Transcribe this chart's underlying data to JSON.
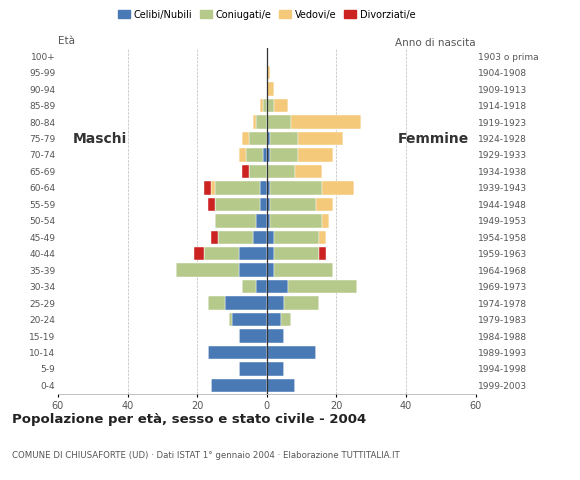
{
  "age_groups": [
    "0-4",
    "5-9",
    "10-14",
    "15-19",
    "20-24",
    "25-29",
    "30-34",
    "35-39",
    "40-44",
    "45-49",
    "50-54",
    "55-59",
    "60-64",
    "65-69",
    "70-74",
    "75-79",
    "80-84",
    "85-89",
    "90-94",
    "95-99",
    "100+"
  ],
  "birth_years": [
    "1999-2003",
    "1994-1998",
    "1989-1993",
    "1984-1988",
    "1979-1983",
    "1974-1978",
    "1969-1973",
    "1964-1968",
    "1959-1963",
    "1954-1958",
    "1949-1953",
    "1944-1948",
    "1939-1943",
    "1934-1938",
    "1929-1933",
    "1924-1928",
    "1919-1923",
    "1914-1918",
    "1909-1913",
    "1904-1908",
    "1903 o prima"
  ],
  "male": {
    "celibe": [
      16,
      8,
      17,
      8,
      10,
      12,
      3,
      8,
      8,
      4,
      3,
      2,
      2,
      0,
      1,
      0,
      0,
      0,
      0,
      0,
      0
    ],
    "coniugato": [
      0,
      0,
      0,
      0,
      1,
      5,
      4,
      18,
      10,
      10,
      12,
      13,
      13,
      5,
      5,
      5,
      3,
      1,
      0,
      0,
      0
    ],
    "vedovo": [
      0,
      0,
      0,
      0,
      0,
      0,
      0,
      0,
      0,
      0,
      0,
      0,
      1,
      0,
      2,
      2,
      1,
      1,
      0,
      0,
      0
    ],
    "divorziato": [
      0,
      0,
      0,
      0,
      0,
      0,
      0,
      0,
      3,
      2,
      0,
      2,
      2,
      2,
      0,
      0,
      0,
      0,
      0,
      0,
      0
    ]
  },
  "female": {
    "nubile": [
      8,
      5,
      14,
      5,
      4,
      5,
      6,
      2,
      2,
      2,
      1,
      1,
      1,
      0,
      1,
      1,
      0,
      0,
      0,
      0,
      0
    ],
    "coniugata": [
      0,
      0,
      0,
      0,
      3,
      10,
      20,
      17,
      13,
      13,
      15,
      13,
      15,
      8,
      8,
      8,
      7,
      2,
      0,
      0,
      0
    ],
    "vedova": [
      0,
      0,
      0,
      0,
      0,
      0,
      0,
      0,
      0,
      2,
      2,
      5,
      9,
      8,
      10,
      13,
      20,
      4,
      2,
      1,
      0
    ],
    "divorziata": [
      0,
      0,
      0,
      0,
      0,
      0,
      0,
      0,
      2,
      0,
      0,
      0,
      0,
      0,
      0,
      0,
      0,
      0,
      0,
      0,
      0
    ]
  },
  "colors": {
    "celibe": "#4a7ab5",
    "coniugato": "#b5c98a",
    "vedovo": "#f5c97a",
    "divorziato": "#cc2222"
  },
  "xlim": 60,
  "title": "Popolazione per età, sesso e stato civile - 2004",
  "subtitle": "COMUNE DI CHIUSAFORTE (UD) · Dati ISTAT 1° gennaio 2004 · Elaborazione TUTTITALIA.IT",
  "legend_labels": [
    "Celibi/Nubili",
    "Coniugati/e",
    "Vedovi/e",
    "Divorziati/e"
  ],
  "label_eta": "Età",
  "label_maschi": "Maschi",
  "label_femmine": "Femmine",
  "anno_nascita": "Anno di nascita"
}
